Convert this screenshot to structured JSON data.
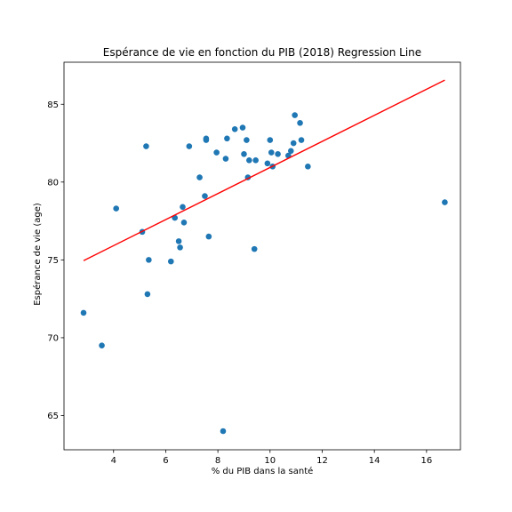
{
  "chart_data": {
    "type": "scatter",
    "title": "Espérance de vie en fonction du PIB (2018) Regression Line",
    "xlabel": "% du PIB dans la santé",
    "ylabel": "Espérance de vie (age)",
    "xlim": [
      2.1,
      17.3
    ],
    "ylim": [
      62.8,
      87.7
    ],
    "xticks": [
      4,
      6,
      8,
      10,
      12,
      14,
      16
    ],
    "yticks": [
      65,
      70,
      75,
      80,
      85
    ],
    "grid": false,
    "colors": {
      "points": "#1f77b4",
      "regression": "#ff0000"
    },
    "series": [
      {
        "kind": "points",
        "x": [
          2.85,
          3.55,
          4.1,
          5.1,
          5.25,
          5.3,
          5.35,
          6.2,
          6.35,
          6.5,
          6.55,
          6.65,
          6.7,
          6.9,
          7.3,
          7.5,
          7.55,
          7.55,
          7.65,
          7.95,
          8.2,
          8.3,
          8.35,
          8.65,
          8.95,
          9.0,
          9.1,
          9.15,
          9.2,
          9.4,
          9.45,
          9.9,
          10.0,
          10.05,
          10.1,
          10.3,
          10.7,
          10.8,
          10.9,
          10.95,
          11.15,
          11.2,
          11.45,
          16.7
        ],
        "y": [
          71.6,
          69.5,
          78.3,
          76.8,
          82.3,
          72.8,
          75.0,
          74.9,
          77.7,
          76.2,
          75.8,
          78.4,
          77.4,
          82.3,
          80.3,
          79.1,
          82.8,
          82.7,
          76.5,
          81.9,
          64.0,
          81.5,
          82.8,
          83.4,
          83.5,
          81.8,
          82.7,
          80.3,
          81.4,
          75.7,
          81.4,
          81.2,
          82.7,
          81.9,
          81.0,
          81.8,
          81.7,
          82.0,
          82.5,
          84.3,
          83.8,
          82.7,
          81.0,
          78.7
        ]
      },
      {
        "kind": "regression",
        "x": [
          2.85,
          16.7
        ],
        "y": [
          74.95,
          86.55
        ]
      }
    ]
  }
}
